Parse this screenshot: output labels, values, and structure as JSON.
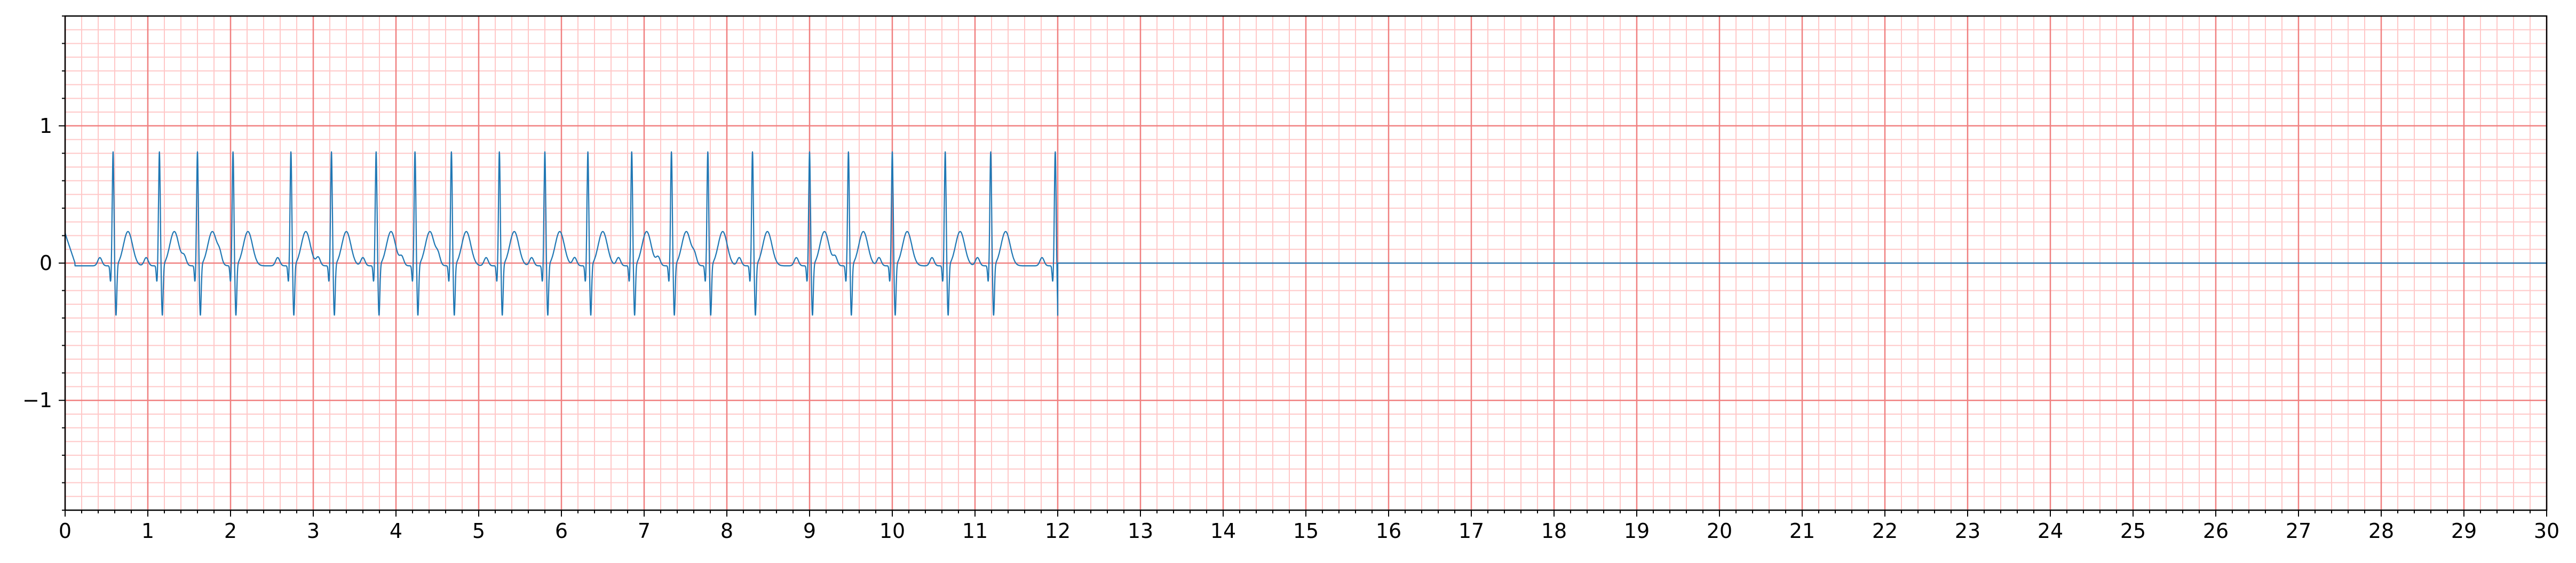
{
  "chart_data": {
    "type": "line",
    "title": "",
    "xlabel": "",
    "ylabel": "",
    "xlim": [
      0,
      30
    ],
    "ylim": [
      -1.8,
      1.8
    ],
    "x_ticks": [
      0,
      1,
      2,
      3,
      4,
      5,
      6,
      7,
      8,
      9,
      10,
      11,
      12,
      13,
      14,
      15,
      16,
      17,
      18,
      19,
      20,
      21,
      22,
      23,
      24,
      25,
      26,
      27,
      28,
      29,
      30
    ],
    "x_tick_labels": [
      "0",
      "1",
      "2",
      "3",
      "4",
      "5",
      "6",
      "7",
      "8",
      "9",
      "10",
      "11",
      "12",
      "13",
      "14",
      "15",
      "16",
      "17",
      "18",
      "19",
      "20",
      "21",
      "22",
      "23",
      "24",
      "25",
      "26",
      "27",
      "28",
      "29",
      "30"
    ],
    "y_ticks": [
      -1,
      0,
      1
    ],
    "y_tick_labels": [
      "−1",
      "0",
      "1"
    ],
    "grid": true,
    "grid_style": "ecg-paper",
    "colors": {
      "major_grid": "#f08080",
      "minor_grid": "#ffc8c8",
      "trace": "#1f77b4",
      "axes": "#000000"
    },
    "series": [
      {
        "signal": "ecg",
        "beat_times": [
          0.58,
          1.14,
          1.6,
          2.03,
          2.73,
          3.22,
          3.76,
          4.23,
          4.67,
          5.25,
          5.8,
          6.32,
          6.85,
          7.33,
          7.77,
          8.31,
          9.0,
          9.47,
          10.0,
          10.64,
          11.19,
          11.97
        ],
        "r_peak": 0.73,
        "s_trough": -0.42,
        "t_wave_peak": 0.25,
        "baseline": -0.02,
        "x_end": 12.0,
        "flat_after_end": 0.0
      }
    ]
  }
}
